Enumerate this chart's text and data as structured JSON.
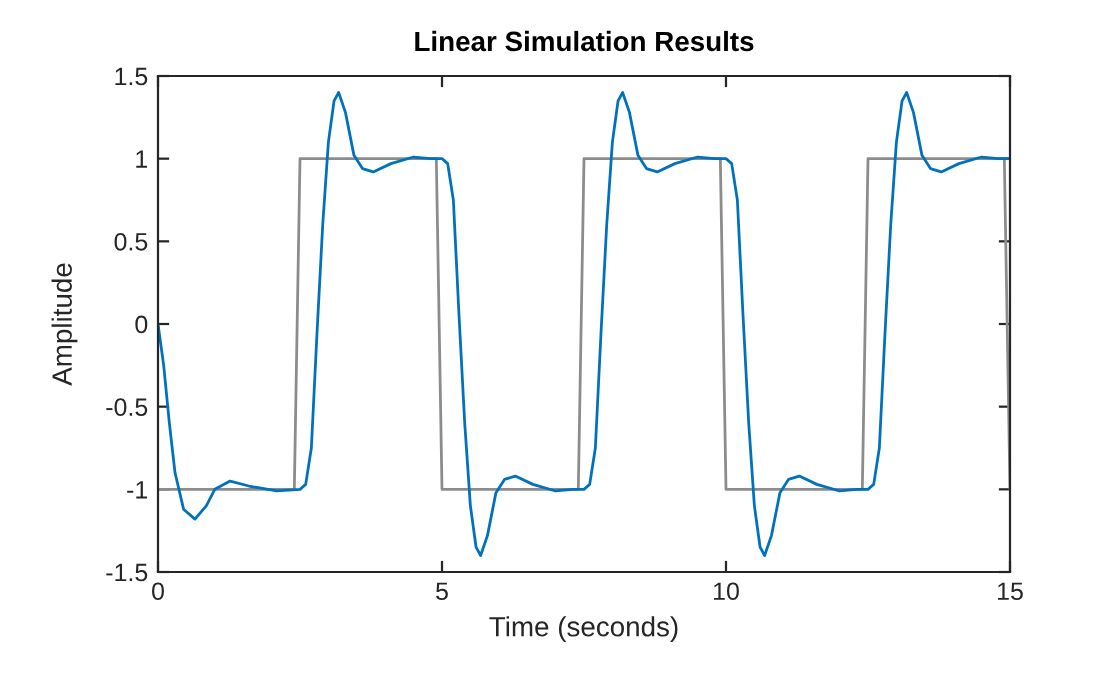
{
  "chart_data": {
    "type": "line",
    "title": "Linear Simulation Results",
    "xlabel": "Time (seconds)",
    "ylabel": "Amplitude",
    "xlim": [
      0,
      15
    ],
    "ylim": [
      -1.5,
      1.5
    ],
    "xticks": [
      0,
      5,
      10,
      15
    ],
    "yticks": [
      -1.5,
      -1,
      -0.5,
      0,
      0.5,
      1,
      1.5
    ],
    "grid": false,
    "legend": false,
    "series": [
      {
        "color": "#8c8c8c",
        "x": [
          0,
          2.4,
          2.5,
          4.9,
          5,
          7.4,
          7.5,
          9.9,
          10,
          12.4,
          12.5,
          14.9,
          15
        ],
        "values": [
          -1,
          -1,
          1,
          1,
          -1,
          -1,
          1,
          1,
          -1,
          -1,
          1,
          1,
          -1
        ]
      },
      {
        "color": "#0072bd",
        "x": [
          0,
          0.1,
          0.2,
          0.3,
          0.45,
          0.65,
          0.85,
          1.0,
          1.27,
          1.6,
          2.09,
          2.5,
          2.6,
          2.7,
          2.8,
          2.9,
          3.0,
          3.1,
          3.18,
          3.3,
          3.45,
          3.6,
          3.79,
          4.1,
          4.5,
          4.8,
          5,
          5.1,
          5.2,
          5.3,
          5.4,
          5.5,
          5.6,
          5.68,
          5.8,
          5.95,
          6.1,
          6.29,
          6.6,
          7.0,
          7.3,
          7.5,
          7.6,
          7.7,
          7.8,
          7.9,
          8.0,
          8.1,
          8.18,
          8.3,
          8.45,
          8.6,
          8.79,
          9.1,
          9.5,
          9.8,
          10,
          10.1,
          10.2,
          10.3,
          10.4,
          10.5,
          10.6,
          10.68,
          10.8,
          10.95,
          11.1,
          11.29,
          11.6,
          12.0,
          12.3,
          12.5,
          12.6,
          12.7,
          12.8,
          12.9,
          13.0,
          13.1,
          13.18,
          13.3,
          13.45,
          13.6,
          13.79,
          14.1,
          14.5,
          14.8,
          15
        ],
        "values": [
          0,
          -0.25,
          -0.6,
          -0.9,
          -1.12,
          -1.18,
          -1.1,
          -1.0,
          -0.95,
          -0.98,
          -1.01,
          -1,
          -0.97,
          -0.75,
          -0.05,
          0.6,
          1.1,
          1.35,
          1.4,
          1.28,
          1.02,
          0.94,
          0.92,
          0.97,
          1.01,
          1.0,
          1,
          0.97,
          0.75,
          0.05,
          -0.6,
          -1.1,
          -1.35,
          -1.4,
          -1.28,
          -1.02,
          -0.94,
          -0.92,
          -0.97,
          -1.01,
          -1.0,
          -1,
          -0.97,
          -0.75,
          -0.05,
          0.6,
          1.1,
          1.35,
          1.4,
          1.28,
          1.02,
          0.94,
          0.92,
          0.97,
          1.01,
          1.0,
          1,
          0.97,
          0.75,
          0.05,
          -0.6,
          -1.1,
          -1.35,
          -1.4,
          -1.28,
          -1.02,
          -0.94,
          -0.92,
          -0.97,
          -1.01,
          -1.0,
          -1,
          -0.97,
          -0.75,
          -0.05,
          0.6,
          1.1,
          1.35,
          1.4,
          1.28,
          1.02,
          0.94,
          0.92,
          0.97,
          1.01,
          1.0,
          1.0
        ]
      }
    ]
  }
}
